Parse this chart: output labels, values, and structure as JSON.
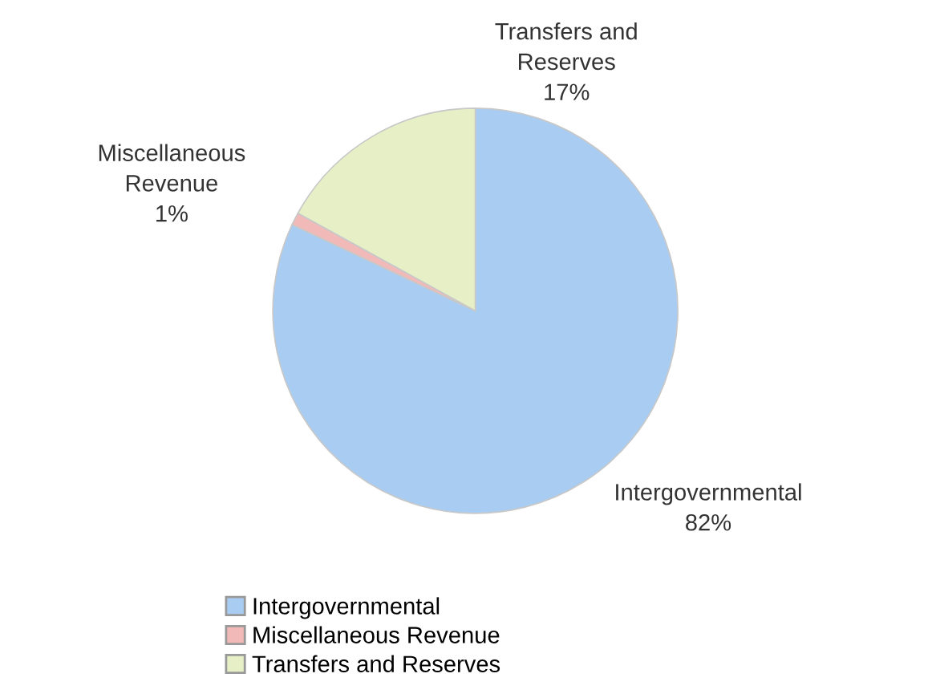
{
  "chart_data": {
    "type": "pie",
    "categories": [
      "Intergovernmental",
      "Miscellaneous Revenue",
      "Transfers and Reserves"
    ],
    "values": [
      82,
      1,
      17
    ],
    "colors": [
      "#a9cdf2",
      "#f2b9b9",
      "#e6efc6"
    ],
    "value_labels": [
      "82%",
      "1%",
      "17%"
    ],
    "legend": "bottom"
  }
}
